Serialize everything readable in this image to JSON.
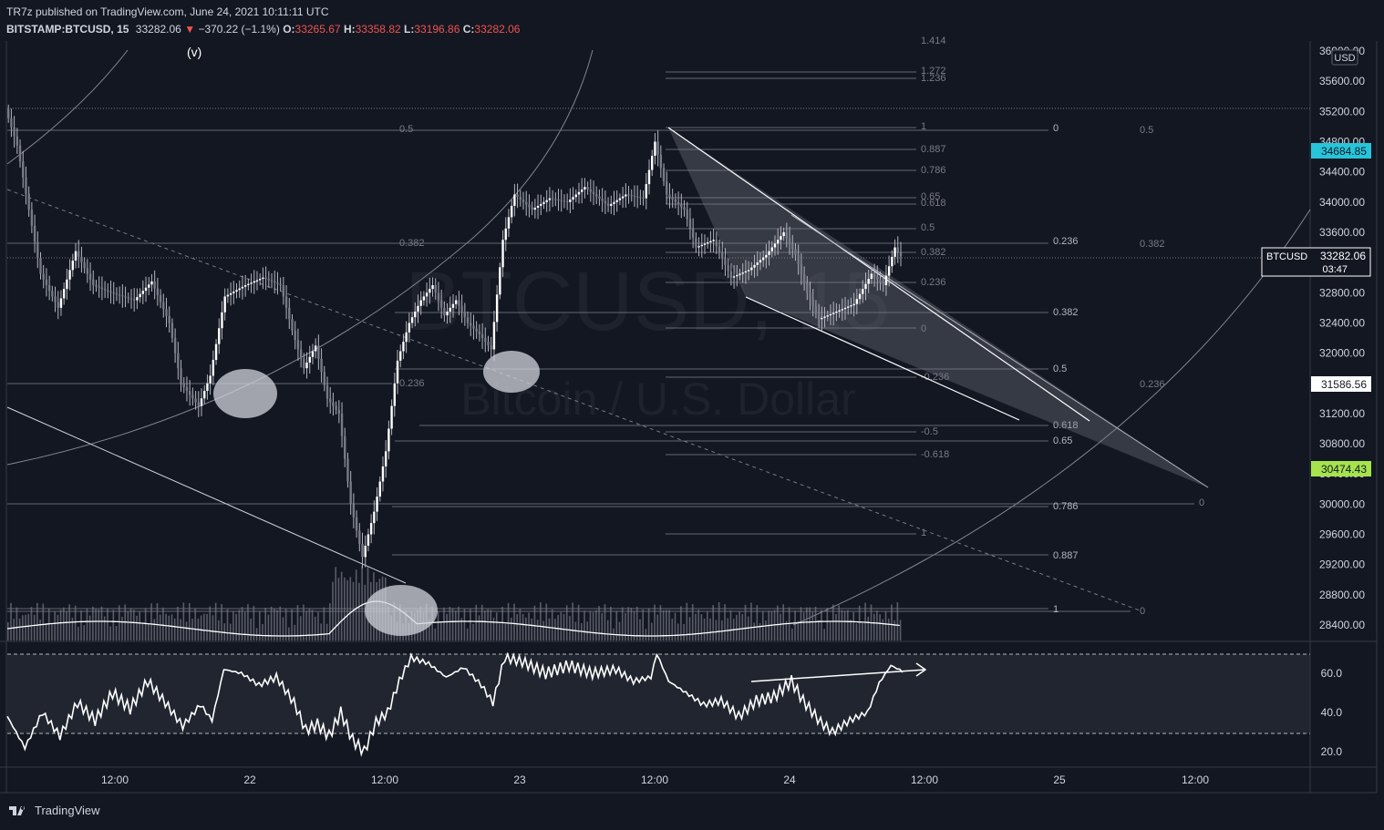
{
  "header": {
    "line1": "TR7z published on TradingView.com, June 24, 2021 10:11:11 UTC",
    "symbol": "BITSTAMP:BTCUSD, 15",
    "last": "33282.06",
    "change_arrow": "▼",
    "change": "−370.22 (−1.1%)",
    "o_label": "O:",
    "o_val": "33265.67",
    "h_label": "H:",
    "h_val": "33358.82",
    "l_label": "L:",
    "l_val": "33196.86",
    "c_label": "C:",
    "c_val": "33282.06"
  },
  "wave_label": "(v)",
  "watermark": {
    "title": "BTCUSD, 15",
    "subtitle": "Bitcoin / U.S. Dollar"
  },
  "currency": "USD",
  "footer": {
    "brand": "TradingView"
  },
  "colors": {
    "background": "#131722",
    "grid": "#363a45",
    "candle": "#b2b5be",
    "price_tag_cyan": "#26c6da",
    "price_tag_green": "#a5e44c",
    "price_tag_white": "#ffffff",
    "red": "#ef5350"
  },
  "chart_data": [
    {
      "type": "candlestick",
      "title": "BITSTAMP:BTCUSD, 15",
      "x_ticks": [
        "12:00",
        "22",
        "12:00",
        "23",
        "12:00",
        "24",
        "12:00",
        "25",
        "12:00"
      ],
      "ylim": [
        28200,
        36100
      ],
      "y_ticks": [
        36000.0,
        35600.0,
        35200.0,
        34800.0,
        34400.0,
        34000.0,
        33600.0,
        33200.0,
        32800.0,
        32400.0,
        32000.0,
        31600.0,
        31200.0,
        30800.0,
        30400.0,
        30000.0,
        29600.0,
        29200.0,
        28800.0,
        28400.0
      ],
      "price_tags": [
        {
          "label": "",
          "value": "34684.85",
          "color": "cyan"
        },
        {
          "label": "BTCUSD",
          "value": "33282.06",
          "sub": "03:47",
          "color": "white"
        },
        {
          "label": "",
          "value": "31586.56",
          "color": "white"
        },
        {
          "label": "",
          "value": "30474.43",
          "color": "green"
        }
      ],
      "fib_labels_left": [
        "0.5",
        "0.382",
        "0.236"
      ],
      "fib_labels_center": [
        "1.414",
        "1.272",
        "1.236",
        "1",
        "0.887",
        "0.786",
        "0.65",
        "0.618",
        "0.5",
        "0.382",
        "0.236",
        "0",
        "-0.236",
        "-0.5",
        "-0.618",
        "1"
      ],
      "fib_labels_right": [
        "0",
        "0.236",
        "0.382",
        "0.5",
        "0.618",
        "0.65",
        "0.786",
        "0.887",
        "1"
      ],
      "fib_labels_far_right": [
        "0.5",
        "0.382",
        "0.236",
        "0",
        "0"
      ],
      "anchor_points": [
        {
          "t": 0,
          "v": 35230
        },
        {
          "t": 4,
          "v": 34750
        },
        {
          "t": 12,
          "v": 33050
        },
        {
          "t": 18,
          "v": 32600
        },
        {
          "t": 24,
          "v": 33350
        },
        {
          "t": 30,
          "v": 32900
        },
        {
          "t": 36,
          "v": 32800
        },
        {
          "t": 44,
          "v": 32700
        },
        {
          "t": 50,
          "v": 32950
        },
        {
          "t": 56,
          "v": 32400
        },
        {
          "t": 60,
          "v": 31600
        },
        {
          "t": 66,
          "v": 31300
        },
        {
          "t": 70,
          "v": 31700
        },
        {
          "t": 75,
          "v": 32750
        },
        {
          "t": 82,
          "v": 32900
        },
        {
          "t": 88,
          "v": 33000
        },
        {
          "t": 94,
          "v": 32900
        },
        {
          "t": 98,
          "v": 32300
        },
        {
          "t": 102,
          "v": 31800
        },
        {
          "t": 106,
          "v": 32100
        },
        {
          "t": 110,
          "v": 31400
        },
        {
          "t": 114,
          "v": 31200
        },
        {
          "t": 118,
          "v": 30000
        },
        {
          "t": 122,
          "v": 29300
        },
        {
          "t": 126,
          "v": 29900
        },
        {
          "t": 130,
          "v": 30700
        },
        {
          "t": 134,
          "v": 31900
        },
        {
          "t": 138,
          "v": 32400
        },
        {
          "t": 142,
          "v": 32700
        },
        {
          "t": 146,
          "v": 32900
        },
        {
          "t": 150,
          "v": 32500
        },
        {
          "t": 154,
          "v": 32700
        },
        {
          "t": 158,
          "v": 32400
        },
        {
          "t": 162,
          "v": 32250
        },
        {
          "t": 166,
          "v": 32050
        },
        {
          "t": 170,
          "v": 33500
        },
        {
          "t": 174,
          "v": 34100
        },
        {
          "t": 180,
          "v": 33900
        },
        {
          "t": 186,
          "v": 34050
        },
        {
          "t": 192,
          "v": 34000
        },
        {
          "t": 198,
          "v": 34200
        },
        {
          "t": 206,
          "v": 33950
        },
        {
          "t": 212,
          "v": 34100
        },
        {
          "t": 218,
          "v": 34050
        },
        {
          "t": 222,
          "v": 34800
        },
        {
          "t": 226,
          "v": 34100
        },
        {
          "t": 232,
          "v": 33900
        },
        {
          "t": 236,
          "v": 33400
        },
        {
          "t": 242,
          "v": 33500
        },
        {
          "t": 248,
          "v": 33000
        },
        {
          "t": 254,
          "v": 33100
        },
        {
          "t": 260,
          "v": 33300
        },
        {
          "t": 266,
          "v": 33600
        },
        {
          "t": 270,
          "v": 33300
        },
        {
          "t": 274,
          "v": 32800
        },
        {
          "t": 278,
          "v": 32450
        },
        {
          "t": 284,
          "v": 32550
        },
        {
          "t": 290,
          "v": 32650
        },
        {
          "t": 296,
          "v": 33050
        },
        {
          "t": 300,
          "v": 32900
        },
        {
          "t": 304,
          "v": 33400
        },
        {
          "t": 306,
          "v": 33282
        }
      ]
    },
    {
      "type": "line",
      "title": "RSI",
      "ylim": [
        17,
        73
      ],
      "y_ticks": [
        "60.0",
        "40.0",
        "20.0"
      ],
      "bands": [
        70,
        30
      ],
      "anchor_points": [
        {
          "t": 0,
          "v": 38
        },
        {
          "t": 6,
          "v": 22
        },
        {
          "t": 12,
          "v": 40
        },
        {
          "t": 18,
          "v": 28
        },
        {
          "t": 24,
          "v": 45
        },
        {
          "t": 30,
          "v": 36
        },
        {
          "t": 36,
          "v": 50
        },
        {
          "t": 42,
          "v": 42
        },
        {
          "t": 48,
          "v": 56
        },
        {
          "t": 54,
          "v": 45
        },
        {
          "t": 60,
          "v": 33
        },
        {
          "t": 66,
          "v": 44
        },
        {
          "t": 70,
          "v": 36
        },
        {
          "t": 74,
          "v": 62
        },
        {
          "t": 80,
          "v": 60
        },
        {
          "t": 86,
          "v": 54
        },
        {
          "t": 92,
          "v": 58
        },
        {
          "t": 98,
          "v": 45
        },
        {
          "t": 102,
          "v": 31
        },
        {
          "t": 106,
          "v": 34
        },
        {
          "t": 110,
          "v": 28
        },
        {
          "t": 114,
          "v": 40
        },
        {
          "t": 118,
          "v": 26
        },
        {
          "t": 122,
          "v": 20
        },
        {
          "t": 126,
          "v": 35
        },
        {
          "t": 130,
          "v": 40
        },
        {
          "t": 134,
          "v": 56
        },
        {
          "t": 138,
          "v": 68
        },
        {
          "t": 144,
          "v": 65
        },
        {
          "t": 150,
          "v": 58
        },
        {
          "t": 156,
          "v": 63
        },
        {
          "t": 162,
          "v": 54
        },
        {
          "t": 166,
          "v": 45
        },
        {
          "t": 170,
          "v": 68
        },
        {
          "t": 176,
          "v": 66
        },
        {
          "t": 184,
          "v": 60
        },
        {
          "t": 192,
          "v": 64
        },
        {
          "t": 200,
          "v": 60
        },
        {
          "t": 208,
          "v": 62
        },
        {
          "t": 214,
          "v": 56
        },
        {
          "t": 220,
          "v": 58
        },
        {
          "t": 222,
          "v": 70
        },
        {
          "t": 226,
          "v": 56
        },
        {
          "t": 232,
          "v": 50
        },
        {
          "t": 238,
          "v": 44
        },
        {
          "t": 244,
          "v": 46
        },
        {
          "t": 250,
          "v": 38
        },
        {
          "t": 256,
          "v": 46
        },
        {
          "t": 262,
          "v": 48
        },
        {
          "t": 268,
          "v": 56
        },
        {
          "t": 272,
          "v": 46
        },
        {
          "t": 278,
          "v": 35
        },
        {
          "t": 282,
          "v": 30
        },
        {
          "t": 288,
          "v": 36
        },
        {
          "t": 294,
          "v": 40
        },
        {
          "t": 298,
          "v": 55
        },
        {
          "t": 302,
          "v": 64
        },
        {
          "t": 306,
          "v": 61
        }
      ],
      "divergence_arrow": {
        "from": [
          266,
          58
        ],
        "to": [
          312,
          64
        ]
      }
    }
  ]
}
